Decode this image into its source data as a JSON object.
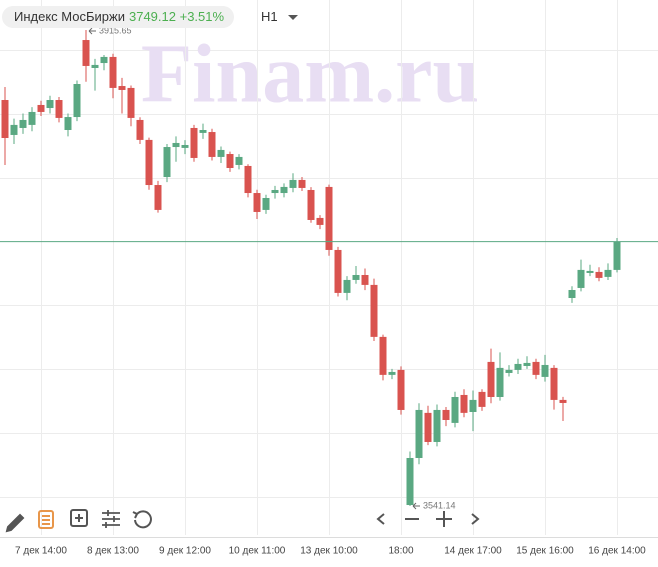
{
  "chart_data": {
    "type": "candlestick",
    "title": "Индекс МосБиржи",
    "last_price": 3749.12,
    "change": "+3.51%",
    "timeframe": "H1",
    "watermark": "Finam.ru",
    "up_color": "#5aa882",
    "down_color": "#d9534f",
    "ylim": [
      3518.3,
      3939.3
    ],
    "categories": [
      null,
      null,
      null,
      null,
      "7 дек 14:00",
      null,
      null,
      null,
      null,
      null,
      null,
      null,
      "8 дек 13:00",
      null,
      null,
      null,
      null,
      null,
      null,
      null,
      "9 дек 12:00",
      null,
      null,
      null,
      null,
      null,
      null,
      null,
      "10 дек 11:00",
      null,
      null,
      null,
      null,
      null,
      null,
      null,
      "13 дек 10:00",
      null,
      null,
      null,
      null,
      null,
      null,
      null,
      "18:00",
      null,
      null,
      null,
      null,
      null,
      null,
      null,
      "14 дек 17:00",
      null,
      null,
      null,
      null,
      null,
      null,
      null,
      "15 дек 16:00",
      null,
      null,
      null,
      null,
      null,
      null,
      null,
      "16 дек 14:00"
    ],
    "open": [
      3860.6,
      3833.1,
      3838.6,
      3841.0,
      3856.7,
      3854.3,
      3860.6,
      3837.0,
      3847.2,
      3907.8,
      3885.8,
      3889.7,
      3894.5,
      3871.6,
      3870.1,
      3844.9,
      3829.2,
      3793.7,
      3800.0,
      3823.6,
      3822.9,
      3838.6,
      3834.7,
      3835.4,
      3815.8,
      3818.1,
      3809.5,
      3808.7,
      3787.4,
      3774.1,
      3787.4,
      3787.4,
      3791.4,
      3797.7,
      3789.8,
      3767.8,
      3792.2,
      3742.6,
      3708.8,
      3719.0,
      3722.9,
      3715.1,
      3674.2,
      3644.3,
      3648.2,
      3541.9,
      3578.9,
      3614.4,
      3591.5,
      3616.7,
      3606.5,
      3628.5,
      3615.1,
      3630.9,
      3654.5,
      3626.9,
      3645.8,
      3648.2,
      3651.3,
      3654.5,
      3642.7,
      3649.8,
      3624.6,
      3704.8,
      3712.7,
      3724.5,
      3725.3,
      3721.4,
      3726.9
    ],
    "high": [
      3870.8,
      3846,
      3850,
      3855,
      3860,
      3864,
      3863,
      3850,
      3876,
      3915.65,
      3893,
      3896,
      3897,
      3878,
      3872,
      3847,
      3831,
      3797,
      3826,
      3832,
      3829,
      3841,
      3842,
      3838,
      3824,
      3820,
      3818,
      3810,
      3790,
      3786,
      3793,
      3795,
      3803,
      3800,
      3792,
      3770,
      3794,
      3745,
      3722,
      3730,
      3728,
      3720,
      3676,
      3649,
      3651,
      3584,
      3622,
      3620,
      3621,
      3619,
      3631,
      3633,
      3632,
      3633,
      3665,
      3662,
      3652,
      3657,
      3659,
      3657,
      3660,
      3652,
      3627,
      3714,
      3735,
      3731,
      3729,
      3732,
      3752
    ],
    "low": [
      3809.5,
      3826,
      3834,
      3836,
      3848,
      3850,
      3843,
      3832,
      3844,
      3875,
      3868,
      3884,
      3862,
      3850,
      3840,
      3826,
      3790,
      3772,
      3796,
      3812,
      3818,
      3812,
      3830,
      3813,
      3811,
      3804,
      3806,
      3784,
      3767,
      3771,
      3783,
      3784,
      3788,
      3789,
      3764,
      3759,
      3738,
      3706,
      3703,
      3716,
      3711,
      3671,
      3640,
      3641,
      3613,
      3541.14,
      3574,
      3589,
      3588,
      3604,
      3603,
      3611,
      3600,
      3616,
      3622,
      3624,
      3643,
      3645,
      3649,
      3641,
      3639,
      3617,
      3608,
      3701,
      3710,
      3722,
      3718,
      3719,
      3725
    ],
    "close": [
      3830.7,
      3841.0,
      3844.9,
      3851.2,
      3851.2,
      3860.6,
      3846.5,
      3847.2,
      3873.2,
      3887.4,
      3888.2,
      3894.5,
      3870.1,
      3868.5,
      3846.5,
      3829.2,
      3793.7,
      3774.1,
      3823.6,
      3826.8,
      3825.2,
      3815.0,
      3837.0,
      3815.8,
      3821.3,
      3807.1,
      3815.8,
      3787.4,
      3772.5,
      3783.5,
      3789.8,
      3792.2,
      3797.7,
      3791.4,
      3766.2,
      3762.3,
      3742.6,
      3708.8,
      3719.0,
      3722.9,
      3715.1,
      3674.2,
      3644.3,
      3646.6,
      3616.7,
      3578.9,
      3616.7,
      3591.5,
      3616.7,
      3608.8,
      3626.9,
      3614.4,
      3624.6,
      3619.1,
      3626.9,
      3649.8,
      3648.2,
      3652.9,
      3653.7,
      3644.3,
      3652.1,
      3624.6,
      3622.2,
      3711.1,
      3726.9,
      3726.1,
      3720.6,
      3726.9,
      3749.12
    ]
  }
}
